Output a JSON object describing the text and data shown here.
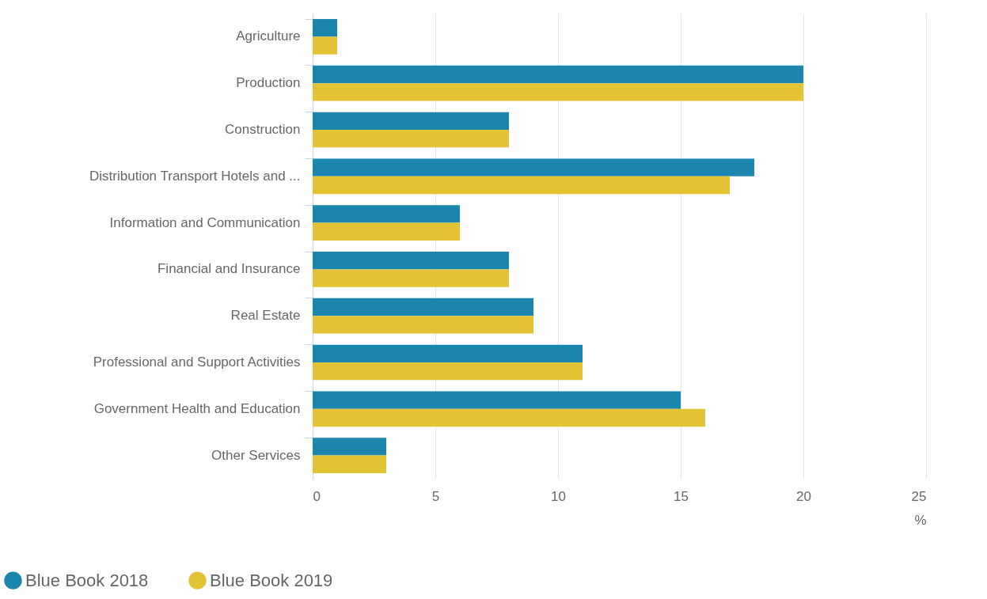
{
  "chart_data": {
    "type": "bar",
    "orientation": "horizontal",
    "xlabel": "%",
    "categories": [
      "Agriculture",
      "Production",
      "Construction",
      "Distribution Transport Hotels and ...",
      "Information and Communication",
      "Financial and Insurance",
      "Real Estate",
      "Professional and Support Activities",
      "Government Health and Education",
      "Other Services"
    ],
    "series": [
      {
        "name": "Blue Book 2018",
        "color": "#1a86ad",
        "values": [
          1,
          20,
          8,
          18,
          6,
          8,
          9,
          11,
          15,
          3
        ]
      },
      {
        "name": "Blue Book 2019",
        "color": "#e3c234",
        "values": [
          1,
          20,
          8,
          17,
          6,
          8,
          9,
          11,
          16,
          3
        ]
      }
    ],
    "xlim": [
      0,
      25
    ],
    "xticks": [
      0,
      5,
      10,
      15,
      20,
      25
    ],
    "grid": "x",
    "legend": "bottom left"
  }
}
